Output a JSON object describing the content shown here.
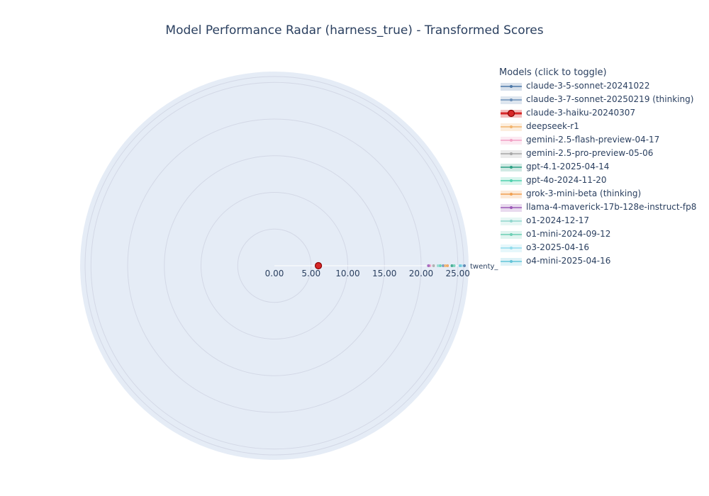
{
  "title": "Model Performance Radar (harness_true) - Transformed Scores",
  "legend": {
    "title": "Models (click to toggle)"
  },
  "chart_data": {
    "type": "radar",
    "title": "Model Performance Radar (harness_true) - Transformed Scores",
    "categories": [
      "twenty_"
    ],
    "radial_range": [
      0,
      25.8
    ],
    "radial_ticks": [
      "0.00",
      "5.00",
      "10.00",
      "15.00",
      "20.00",
      "25.00"
    ],
    "radial_tick_values": [
      0,
      5,
      10,
      15,
      20,
      25
    ],
    "grid": true,
    "legend_position": "top-right",
    "series": [
      {
        "name": "claude-3-5-sonnet-20241022",
        "values": [
          25.9
        ],
        "color": "#4c78a8",
        "highlight": false
      },
      {
        "name": "claude-3-7-sonnet-20250219 (thinking)",
        "values": [
          23.0
        ],
        "color": "#6b8fb8",
        "highlight": false
      },
      {
        "name": "claude-3-haiku-20240307",
        "values": [
          6.0
        ],
        "color": "#d62728",
        "highlight": true
      },
      {
        "name": "deepseek-r1",
        "values": [
          23.3
        ],
        "color": "#f2b36b",
        "highlight": false
      },
      {
        "name": "gemini-2.5-flash-preview-04-17",
        "values": [
          21.2
        ],
        "color": "#f2a0c4",
        "highlight": false
      },
      {
        "name": "gemini-2.5-pro-preview-05-06",
        "values": [
          21.7
        ],
        "color": "#a6a6a6",
        "highlight": false
      },
      {
        "name": "gpt-4.1-2025-04-14",
        "values": [
          24.2
        ],
        "color": "#2ca083",
        "highlight": false
      },
      {
        "name": "gpt-4o-2024-11-20",
        "values": [
          22.6
        ],
        "color": "#4fd1ad",
        "highlight": false
      },
      {
        "name": "grok-3-mini-beta (thinking)",
        "values": [
          23.6
        ],
        "color": "#f0a050",
        "highlight": false
      },
      {
        "name": "llama-4-maverick-17b-128e-instruct-fp8",
        "values": [
          21.0
        ],
        "color": "#9b59b6",
        "highlight": false
      },
      {
        "name": "o1-2024-12-17",
        "values": [
          22.3
        ],
        "color": "#8fd6cc",
        "highlight": false
      },
      {
        "name": "o1-mini-2024-09-12",
        "values": [
          24.5
        ],
        "color": "#6ccfb4",
        "highlight": false
      },
      {
        "name": "o3-2025-04-16",
        "values": [
          25.5
        ],
        "color": "#8fdcec",
        "highlight": false
      },
      {
        "name": "o4-mini-2025-04-16",
        "values": [
          25.3
        ],
        "color": "#62c4d9",
        "highlight": false
      }
    ]
  }
}
